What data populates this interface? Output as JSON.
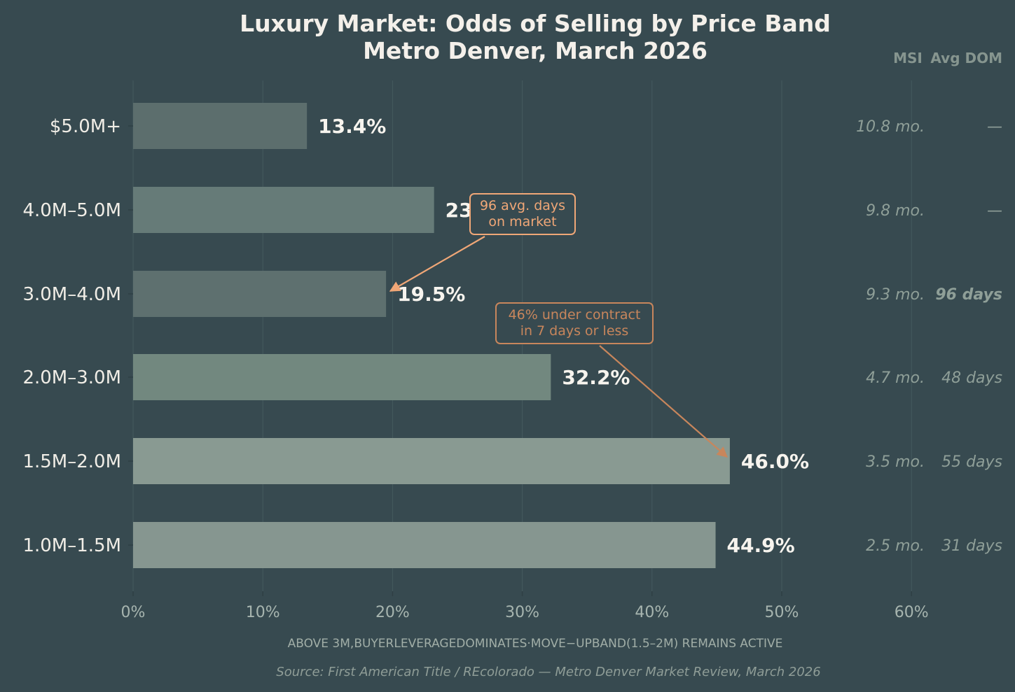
{
  "chart_data": {
    "type": "bar",
    "orientation": "horizontal",
    "title": "Luxury Market: Odds of Selling by Price Band",
    "subtitle": "Metro Denver, March 2026",
    "categories": [
      "$5.0M+",
      "4.0M–5.0M",
      "3.0M–4.0M",
      "2.0M–3.0M",
      "1.5M–2.0M",
      "1.0M–1.5M"
    ],
    "values": [
      13.4,
      23.2,
      19.5,
      32.2,
      46.0,
      44.9
    ],
    "value_labels": [
      "13.4%",
      "23",
      "19.5%",
      "32.2%",
      "46.0%",
      "44.9%"
    ],
    "bar_colors": [
      "#5c6e6d",
      "#667b78",
      "#5e706f",
      "#72887f",
      "#899a92",
      "#869690"
    ],
    "xlim": [
      0,
      62
    ],
    "xticks": [
      0,
      10,
      20,
      30,
      40,
      50,
      60
    ],
    "xtick_labels": [
      "0%",
      "10%",
      "20%",
      "30%",
      "40%",
      "50%",
      "60%"
    ],
    "grid": "vertical",
    "extra_columns": {
      "headers": [
        "MSI",
        "Avg DOM"
      ],
      "msi": [
        "10.8 mo.",
        "9.8 mo.",
        "9.3 mo.",
        "4.7 mo.",
        "3.5 mo.",
        "2.5 mo."
      ],
      "avg_dom": [
        "—",
        "—",
        "96 days",
        "48 days",
        "55 days",
        "31 days"
      ],
      "highlight_row": 2,
      "highlight_color": "#c07f56"
    },
    "annotations": [
      {
        "lines": [
          "96 avg. days",
          "on market"
        ],
        "target_category_index": 2,
        "target_value": 19.5,
        "color": "#f0a777"
      },
      {
        "lines": [
          "46% under contract",
          "in 7 days or less"
        ],
        "target_category_index": 4,
        "target_value": 46.0,
        "color": "#c8865c"
      }
    ],
    "footnote": "ABOVE 3M,BUYERLEVERAGEDOMINATES·MOVE−UPBAND(1.5–2M) REMAINS ACTIVE",
    "source": "Source: First American Title / REcolorado — Metro Denver Market Review, March 2026"
  }
}
